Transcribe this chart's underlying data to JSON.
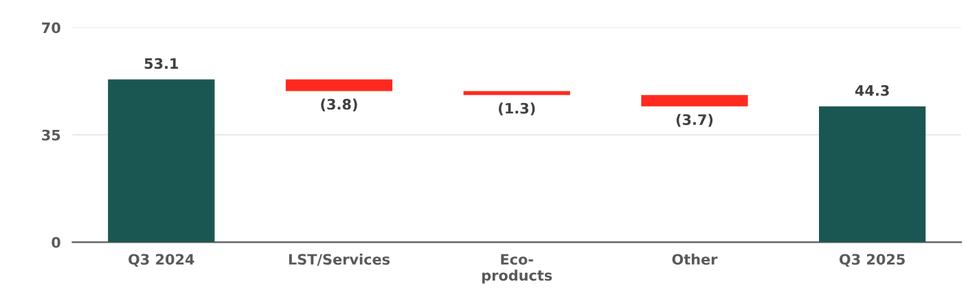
{
  "chart_data": {
    "type": "bar",
    "categories": [
      "Q3 2024",
      "LST/Services",
      "Eco-\nproducts",
      "Other",
      "Q3 2025"
    ],
    "values": [
      53.1,
      -3.8,
      -1.3,
      -3.7,
      44.3
    ],
    "base": [
      0,
      53.1,
      49.3,
      48.0,
      0
    ],
    "colors": [
      "#1b5752",
      "#ff2a1f",
      "#ff2a1f",
      "#ff2a1f",
      "#1b5752"
    ],
    "value_labels": [
      "53.1",
      "(3.8)",
      "(1.3)",
      "(3.7)",
      "44.3"
    ],
    "ylim": [
      0,
      70
    ],
    "yticks": [
      0,
      35,
      70
    ],
    "grid": "y",
    "legend": false
  }
}
